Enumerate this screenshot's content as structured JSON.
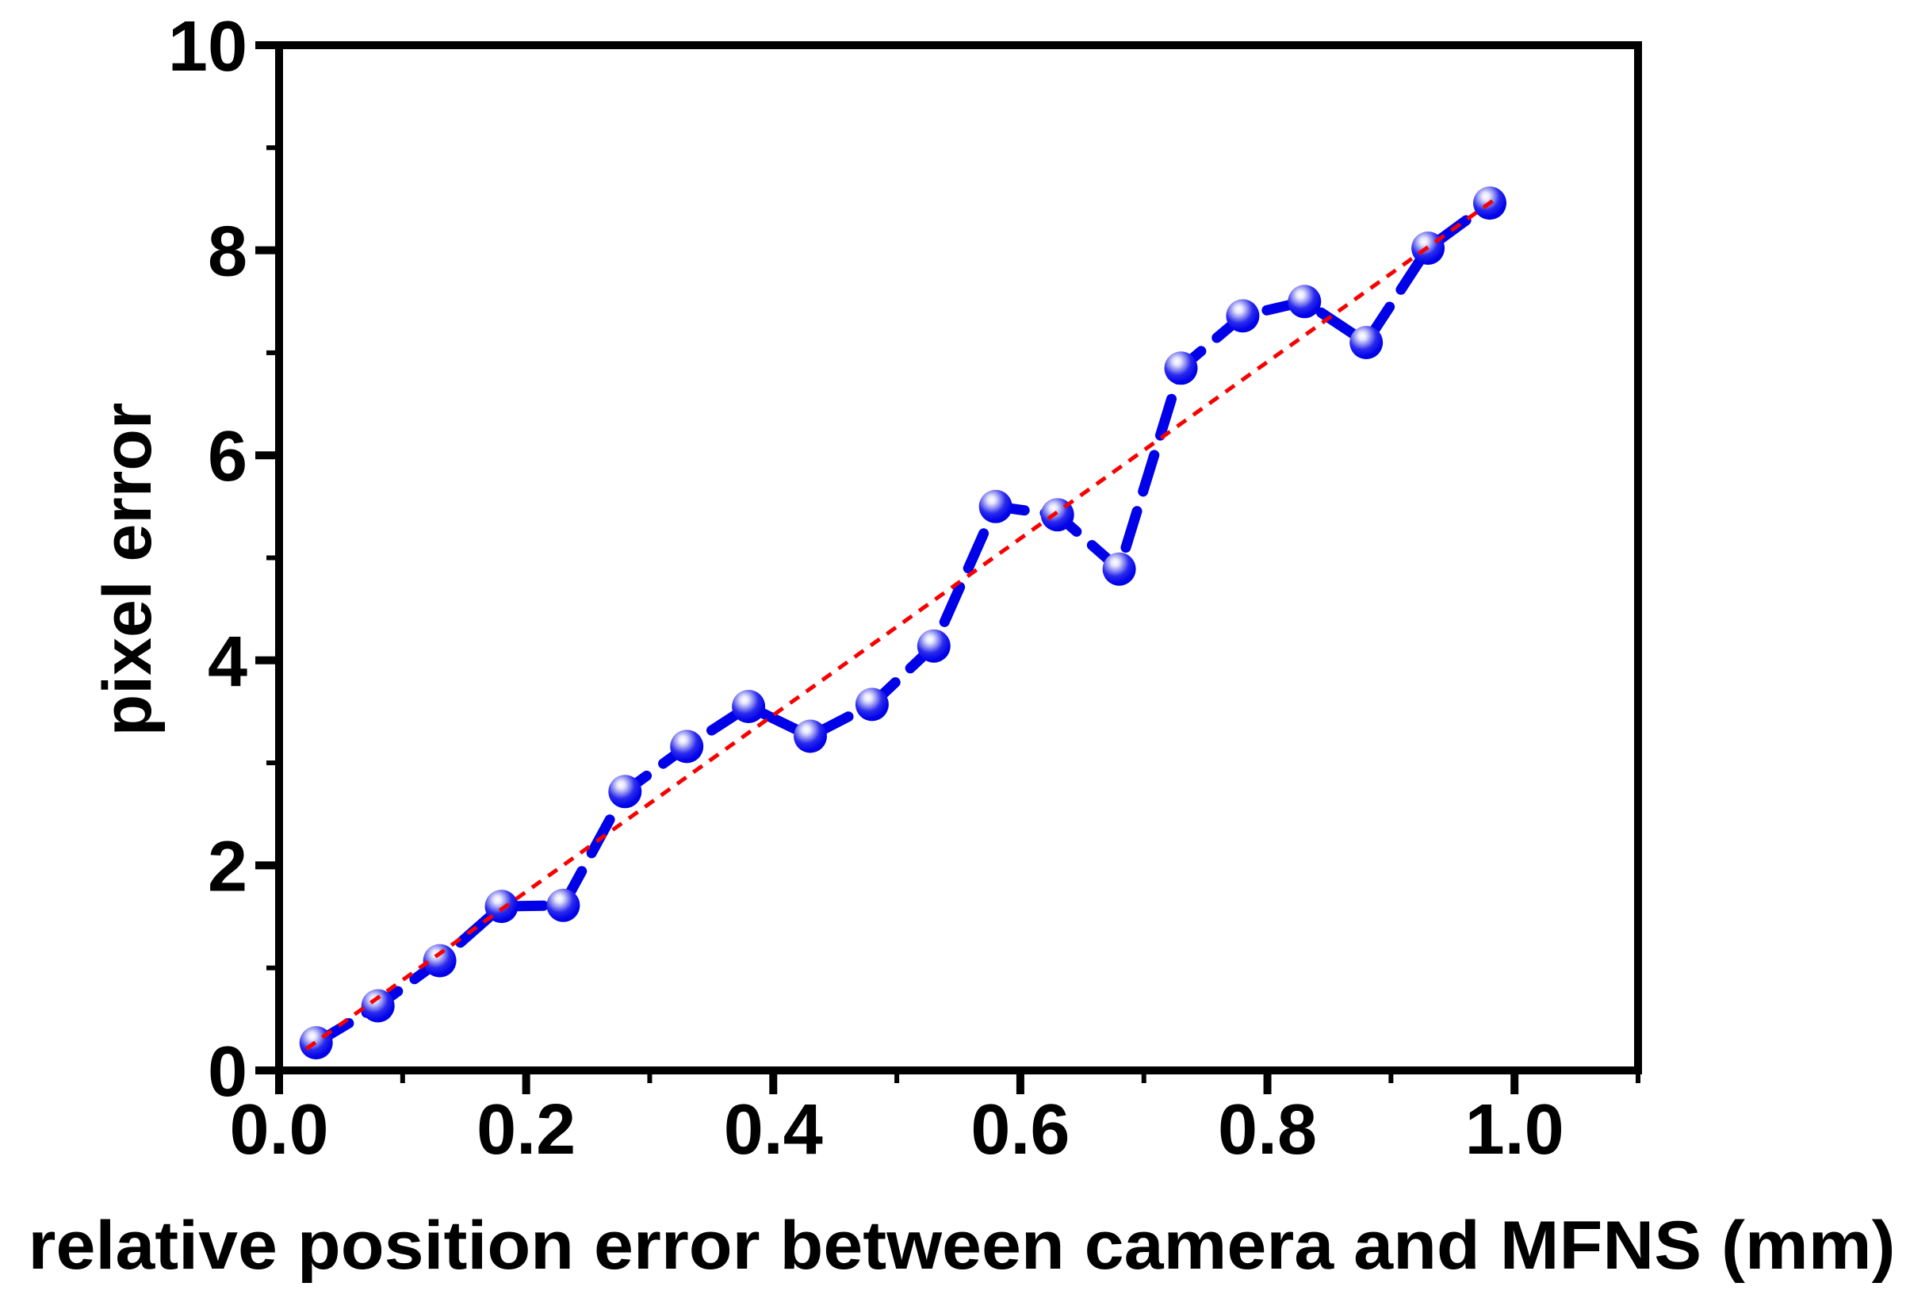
{
  "figure": {
    "background": "#ffffff"
  },
  "chart_data": {
    "type": "scatter",
    "title": "",
    "xlabel": "relative position error between camera and MFNS (mm)",
    "ylabel": "pixel error",
    "xlim": [
      0,
      1.1
    ],
    "ylim": [
      0,
      10
    ],
    "grid": false,
    "legend": null,
    "x_major_ticks": {
      "values": [
        0.0,
        0.2,
        0.4,
        0.6,
        0.8,
        1.0
      ],
      "labels": [
        "0.0",
        "0.2",
        "0.4",
        "0.6",
        "0.8",
        "1.0"
      ]
    },
    "x_minor_ticks": [
      0.1,
      0.3,
      0.5,
      0.7,
      0.9,
      1.1
    ],
    "y_major_ticks": {
      "values": [
        0,
        2,
        4,
        6,
        8,
        10
      ],
      "labels": [
        "0",
        "2",
        "4",
        "6",
        "8",
        "10"
      ]
    },
    "y_minor_ticks": [
      1,
      3,
      5,
      7,
      9
    ],
    "colors": {
      "axis": "#000000",
      "marker_blue": "#0909f0",
      "marker_highlight": "#ffffff",
      "line_blue": "#0000e8",
      "trend_red": "#f80000",
      "background": "#ffffff"
    },
    "series": [
      {
        "name": "pixel error vs relative position error",
        "type": "line+marker",
        "marker": "sphere",
        "line_style": "dashed",
        "line_color": "#0000e8",
        "points": [
          [
            0.03,
            0.27
          ],
          [
            0.08,
            0.63
          ],
          [
            0.13,
            1.07
          ],
          [
            0.18,
            1.6
          ],
          [
            0.23,
            1.61
          ],
          [
            0.28,
            2.72
          ],
          [
            0.33,
            3.16
          ],
          [
            0.38,
            3.55
          ],
          [
            0.43,
            3.26
          ],
          [
            0.48,
            3.57
          ],
          [
            0.53,
            4.14
          ],
          [
            0.58,
            5.5
          ],
          [
            0.63,
            5.42
          ],
          [
            0.68,
            4.89
          ],
          [
            0.73,
            6.85
          ],
          [
            0.78,
            7.36
          ],
          [
            0.83,
            7.5
          ],
          [
            0.88,
            7.1
          ],
          [
            0.93,
            8.02
          ],
          [
            0.98,
            8.46
          ]
        ]
      },
      {
        "name": "linear trend",
        "type": "line",
        "line_style": "dashed",
        "line_color": "#f80000",
        "points": [
          [
            0.022,
            0.21
          ],
          [
            0.988,
            8.53
          ]
        ]
      }
    ]
  }
}
